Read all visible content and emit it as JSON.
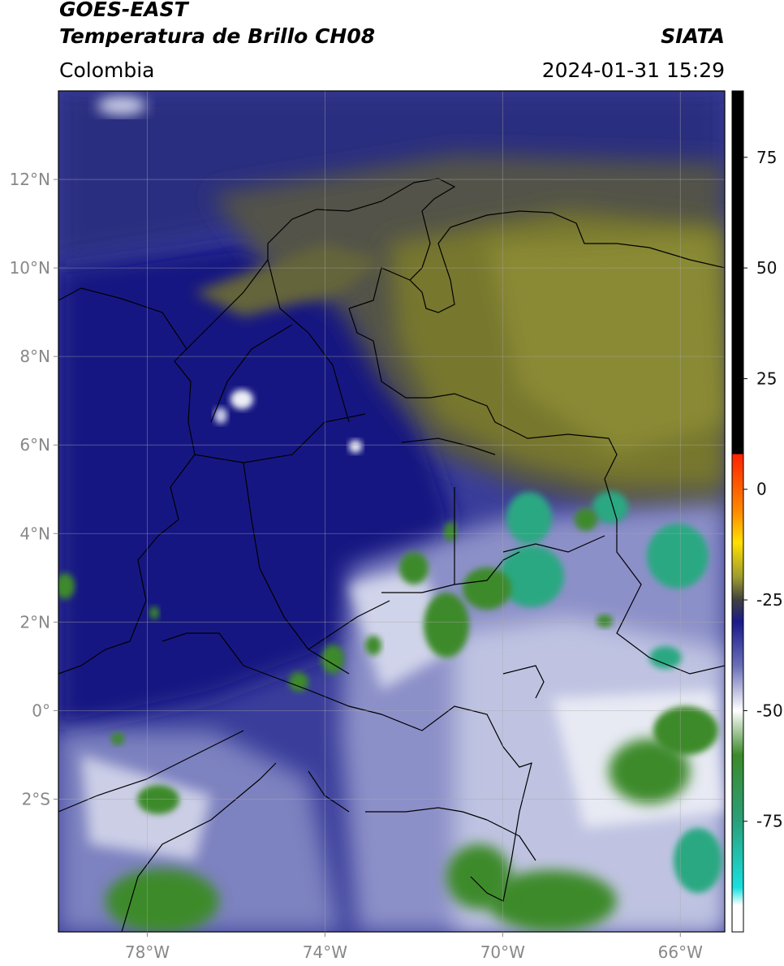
{
  "header": {
    "satellite": "GOES-EAST",
    "product": "Temperatura de Brillo CH08",
    "region": "Colombia",
    "source": "SIATA",
    "datetime": "2024-01-31 15:29"
  },
  "map": {
    "lon_range": [
      -80,
      -65
    ],
    "lat_range": [
      -5,
      14
    ],
    "lon_ticks": [
      {
        "value": -78,
        "label": "78°W"
      },
      {
        "value": -74,
        "label": "74°W"
      },
      {
        "value": -70,
        "label": "70°W"
      },
      {
        "value": -66,
        "label": "66°W"
      }
    ],
    "lat_ticks": [
      {
        "value": 12,
        "label": "12°N"
      },
      {
        "value": 10,
        "label": "10°N"
      },
      {
        "value": 8,
        "label": "8°N"
      },
      {
        "value": 6,
        "label": "6°N"
      },
      {
        "value": 4,
        "label": "4°N"
      },
      {
        "value": 2,
        "label": "2°N"
      },
      {
        "value": 0,
        "label": "0°"
      },
      {
        "value": -2,
        "label": "2°S"
      }
    ],
    "gridlines": true
  },
  "colorbar": {
    "range": [
      -100,
      90
    ],
    "ticks": [
      {
        "value": 75,
        "label": "75"
      },
      {
        "value": 50,
        "label": "50"
      },
      {
        "value": 25,
        "label": "25"
      },
      {
        "value": 0,
        "label": "0"
      },
      {
        "value": -25,
        "label": "-25"
      },
      {
        "value": -50,
        "label": "-50"
      },
      {
        "value": -75,
        "label": "-75"
      }
    ],
    "stops": [
      {
        "value": 90,
        "color": "#000000"
      },
      {
        "value": 8,
        "color": "#000000"
      },
      {
        "value": 7.9,
        "color": "#ff2200"
      },
      {
        "value": -5,
        "color": "#ff8a00"
      },
      {
        "value": -12,
        "color": "#ffe000"
      },
      {
        "value": -20,
        "color": "#9a9a30"
      },
      {
        "value": -25,
        "color": "#404040"
      },
      {
        "value": -30,
        "color": "#1a1a8c"
      },
      {
        "value": -40,
        "color": "#6b70b8"
      },
      {
        "value": -50,
        "color": "#ffffff"
      },
      {
        "value": -60,
        "color": "#3c8a2a"
      },
      {
        "value": -75,
        "color": "#2aa07a"
      },
      {
        "value": -90,
        "color": "#18e0e0"
      },
      {
        "value": -94,
        "color": "#ffffff"
      },
      {
        "value": -100,
        "color": "#ffffff"
      }
    ]
  },
  "colors": {
    "warm_cloudfree": "#52524a",
    "olive": "#77772f",
    "deep_blue": "#161682",
    "mid_blue": "#3a3d9a",
    "lavender": "#8c90c8",
    "white_cloud": "#eceef6",
    "green_cloud": "#3d8a2c",
    "teal_cloud": "#2aa882",
    "border_line": "#000000",
    "grid_line": "#aaaaaa"
  }
}
